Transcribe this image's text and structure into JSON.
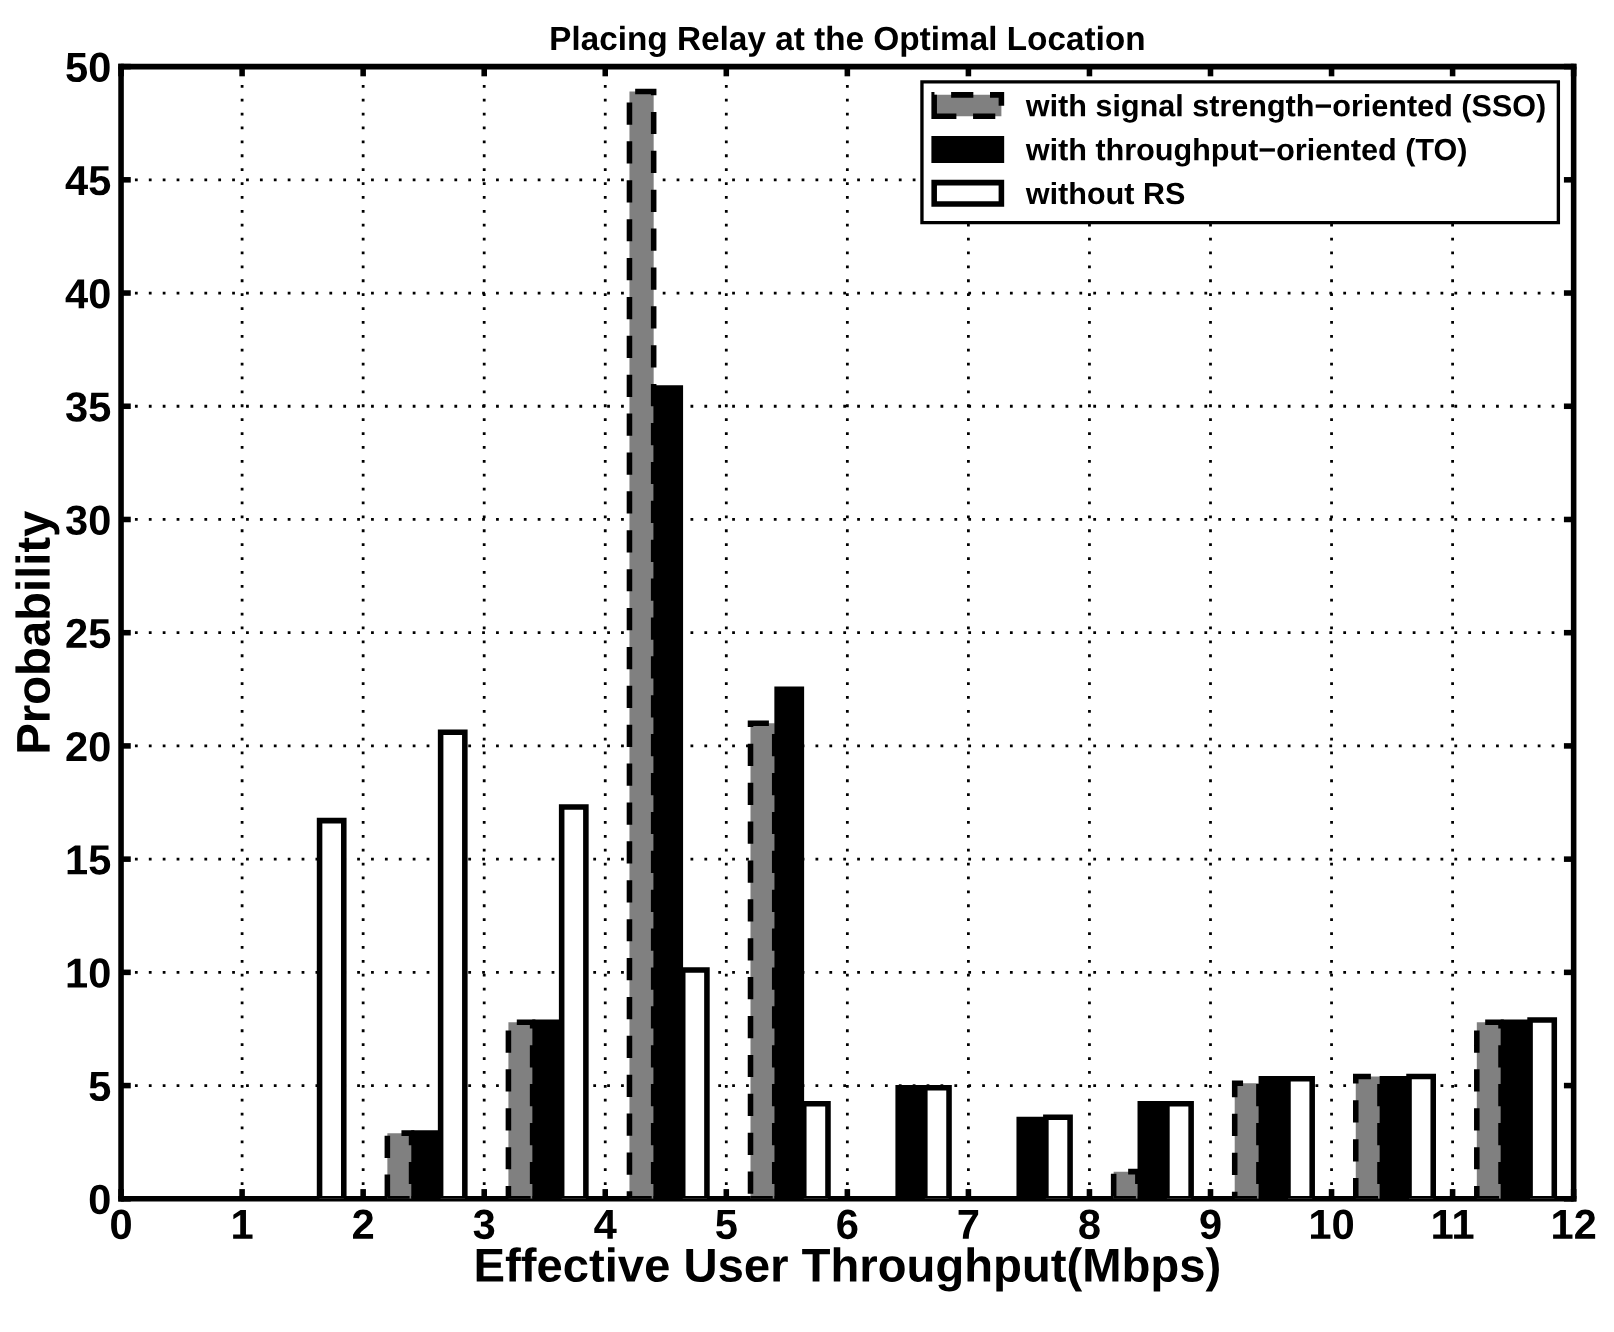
{
  "chart_data": {
    "type": "bar",
    "title": "Placing Relay at the Optimal Location",
    "xlabel": "Effective User Throughput(Mbps)",
    "ylabel": "Probability",
    "xlim": [
      0,
      12
    ],
    "xticks": [
      0,
      1,
      2,
      3,
      4,
      5,
      6,
      7,
      8,
      9,
      10,
      11,
      12
    ],
    "ylim": [
      0,
      50
    ],
    "yticks": [
      0,
      5,
      10,
      15,
      20,
      25,
      30,
      35,
      40,
      45,
      50
    ],
    "grid": true,
    "legend": "top right",
    "series": [
      {
        "name": "with signal strength−oriented (SSO)",
        "color": "#808080",
        "line_style": "dashed",
        "x": [
          2.3,
          3.3,
          4.3,
          5.3,
          8.3,
          9.3,
          10.3,
          11.3
        ],
        "values": [
          2.9,
          7.8,
          48.9,
          21.0,
          1.2,
          5.1,
          5.4,
          7.8
        ]
      },
      {
        "name": "with throughput−oriented (TO)",
        "color": "#000000",
        "line_style": "solid",
        "x": [
          2.52,
          3.52,
          4.52,
          5.52,
          6.52,
          7.52,
          8.52,
          9.52,
          10.52,
          11.52
        ],
        "values": [
          2.9,
          7.8,
          35.8,
          22.5,
          4.9,
          3.5,
          4.2,
          5.3,
          5.3,
          7.8
        ]
      },
      {
        "name": "without RS",
        "color": "#ffffff",
        "line_style": "solid",
        "x": [
          1.74,
          2.74,
          3.74,
          4.74,
          5.74,
          6.74,
          7.74,
          8.74,
          9.74,
          10.74,
          11.74
        ],
        "values": [
          16.7,
          20.6,
          17.3,
          10.1,
          4.2,
          4.9,
          3.6,
          4.2,
          5.3,
          5.4,
          7.9
        ]
      }
    ]
  }
}
